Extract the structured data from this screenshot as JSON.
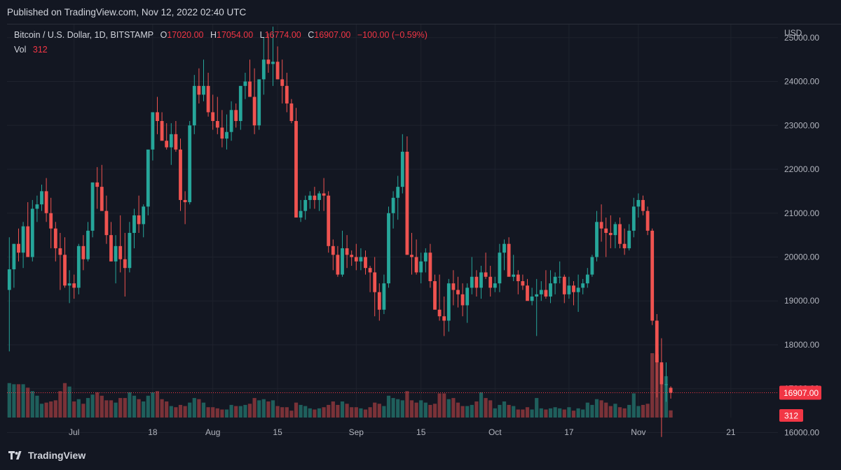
{
  "header": {
    "published": "Published on TradingView.com, Nov 12, 2022 02:40 UTC"
  },
  "legend": {
    "symbol": "Bitcoin / U.S. Dollar, 1D, BITSTAMP",
    "o_label": "O",
    "o_value": "17020.00",
    "h_label": "H",
    "h_value": "17054.00",
    "l_label": "L",
    "l_value": "16774.00",
    "c_label": "C",
    "c_value": "16907.00",
    "change": "−100.00 (−0.59%)",
    "vol_label": "Vol",
    "vol_value": "312"
  },
  "footer": {
    "brand": "TradingView"
  },
  "colors": {
    "background": "#131722",
    "grid": "#1e222d",
    "up": "#26a69a",
    "down": "#ef5350",
    "vol_up": "#1f5f5c",
    "vol_down": "#7a3238",
    "text": "#b2b5be",
    "last_price": "#f23645"
  },
  "chart_data": {
    "type": "candlestick",
    "currency": "USD",
    "ylim": [
      15800,
      25300
    ],
    "y_ticks": [
      "16000.00",
      "17000.00",
      "18000.00",
      "19000.00",
      "20000.00",
      "21000.00",
      "22000.00",
      "23000.00",
      "24000.00",
      "25000.00"
    ],
    "x_ticks": [
      {
        "label": "Jul",
        "index": 14
      },
      {
        "label": "18",
        "index": 31
      },
      {
        "label": "Aug",
        "index": 44
      },
      {
        "label": "15",
        "index": 58
      },
      {
        "label": "Sep",
        "index": 75
      },
      {
        "label": "15",
        "index": 89
      },
      {
        "label": "Oct",
        "index": 105
      },
      {
        "label": "17",
        "index": 121
      },
      {
        "label": "Nov",
        "index": 136
      },
      {
        "label": "21",
        "index": 156
      }
    ],
    "last_price": "16907.00",
    "last_volume": "312",
    "ohlcv": [
      [
        19250,
        20450,
        17850,
        19720,
        1500
      ],
      [
        19720,
        20300,
        19300,
        20300,
        1450
      ],
      [
        20300,
        20650,
        19900,
        20100,
        1450
      ],
      [
        20100,
        20800,
        19750,
        20700,
        1450
      ],
      [
        20700,
        21250,
        20000,
        20000,
        1300
      ],
      [
        20000,
        21300,
        19900,
        21100,
        1150
      ],
      [
        21100,
        21400,
        20800,
        21200,
        950
      ],
      [
        21200,
        21650,
        21050,
        21500,
        600
      ],
      [
        21500,
        21800,
        20800,
        21000,
        650
      ],
      [
        21000,
        21350,
        20200,
        20650,
        700
      ],
      [
        20650,
        20800,
        19900,
        20200,
        750
      ],
      [
        20200,
        20550,
        19250,
        20050,
        1150
      ],
      [
        20050,
        20450,
        19300,
        19350,
        1500
      ],
      [
        19350,
        19700,
        18950,
        19400,
        1350
      ],
      [
        19400,
        19600,
        19050,
        19300,
        700
      ],
      [
        19300,
        20300,
        19150,
        20250,
        800
      ],
      [
        20250,
        20500,
        19700,
        19950,
        600
      ],
      [
        19950,
        20800,
        19900,
        20600,
        850
      ],
      [
        20600,
        21700,
        20450,
        21700,
        1000
      ],
      [
        21700,
        22050,
        21100,
        21600,
        1100
      ],
      [
        21600,
        22100,
        21150,
        21050,
        950
      ],
      [
        21050,
        21400,
        20300,
        20500,
        750
      ],
      [
        20500,
        20800,
        19900,
        19900,
        750
      ],
      [
        19900,
        20500,
        19400,
        20250,
        650
      ],
      [
        20250,
        20950,
        19650,
        19950,
        850
      ],
      [
        19950,
        20550,
        19100,
        19750,
        850
      ],
      [
        19750,
        20800,
        19650,
        20550,
        1100
      ],
      [
        20550,
        21100,
        20200,
        20950,
        950
      ],
      [
        20950,
        21400,
        20550,
        20750,
        800
      ],
      [
        20750,
        21200,
        20450,
        21150,
        700
      ],
      [
        21150,
        22000,
        20950,
        22450,
        950
      ],
      [
        22450,
        23200,
        22200,
        23300,
        1100
      ],
      [
        23300,
        23650,
        22800,
        23100,
        1150
      ],
      [
        23100,
        23300,
        22850,
        22650,
        800
      ],
      [
        22650,
        23050,
        22450,
        22500,
        700
      ],
      [
        22500,
        23050,
        22100,
        22800,
        500
      ],
      [
        22800,
        23100,
        22400,
        22450,
        450
      ],
      [
        22450,
        22700,
        21050,
        21300,
        550
      ],
      [
        21300,
        21500,
        20750,
        21250,
        500
      ],
      [
        21250,
        23100,
        21200,
        23000,
        650
      ],
      [
        23000,
        24150,
        22800,
        23900,
        850
      ],
      [
        23900,
        24300,
        23500,
        23700,
        800
      ],
      [
        23700,
        24500,
        23550,
        23900,
        650
      ],
      [
        23900,
        24200,
        23200,
        23300,
        450
      ],
      [
        23300,
        23700,
        22900,
        23100,
        450
      ],
      [
        23100,
        23650,
        22800,
        22950,
        400
      ],
      [
        22950,
        23350,
        22500,
        22700,
        350
      ],
      [
        22700,
        23250,
        22450,
        22850,
        350
      ],
      [
        22850,
        23550,
        22650,
        23350,
        550
      ],
      [
        23350,
        23500,
        22950,
        23100,
        500
      ],
      [
        23100,
        23900,
        22900,
        23900,
        500
      ],
      [
        23900,
        24200,
        23600,
        24000,
        550
      ],
      [
        24000,
        24500,
        23700,
        23650,
        600
      ],
      [
        23650,
        24300,
        22800,
        23000,
        850
      ],
      [
        23000,
        24050,
        22900,
        24050,
        750
      ],
      [
        24050,
        25000,
        23700,
        24500,
        800
      ],
      [
        24500,
        25100,
        24200,
        24400,
        700
      ],
      [
        24400,
        25250,
        23900,
        24450,
        750
      ],
      [
        24450,
        24800,
        24100,
        24050,
        500
      ],
      [
        24050,
        24500,
        23500,
        23900,
        450
      ],
      [
        23900,
        24200,
        23300,
        23500,
        450
      ],
      [
        23500,
        23600,
        23050,
        23100,
        300
      ],
      [
        23100,
        23400,
        20900,
        20900,
        650
      ],
      [
        20900,
        21300,
        20800,
        21050,
        550
      ],
      [
        21050,
        21400,
        20850,
        21300,
        500
      ],
      [
        21300,
        21500,
        21100,
        21400,
        400
      ],
      [
        21400,
        21600,
        21100,
        21300,
        350
      ],
      [
        21300,
        21500,
        21050,
        21450,
        400
      ],
      [
        21450,
        21800,
        21050,
        21400,
        450
      ],
      [
        21400,
        21500,
        20100,
        20250,
        550
      ],
      [
        20250,
        20400,
        19700,
        20050,
        700
      ],
      [
        20050,
        20250,
        19550,
        19600,
        550
      ],
      [
        19600,
        20600,
        19550,
        20200,
        700
      ],
      [
        20200,
        20500,
        19750,
        20050,
        600
      ],
      [
        20050,
        20150,
        19800,
        20000,
        450
      ],
      [
        20000,
        20300,
        19700,
        19900,
        450
      ],
      [
        19900,
        20200,
        19700,
        20000,
        400
      ],
      [
        20000,
        20150,
        19600,
        19750,
        350
      ],
      [
        19750,
        19800,
        19200,
        19650,
        450
      ],
      [
        19650,
        20000,
        18650,
        19200,
        650
      ],
      [
        19200,
        19400,
        18550,
        18800,
        600
      ],
      [
        18800,
        19600,
        18700,
        19400,
        500
      ],
      [
        19400,
        21150,
        19300,
        21000,
        950
      ],
      [
        21000,
        21500,
        20650,
        21350,
        850
      ],
      [
        21350,
        21850,
        20850,
        21600,
        800
      ],
      [
        21600,
        22800,
        21450,
        22400,
        750
      ],
      [
        22400,
        22750,
        20050,
        20050,
        1150
      ],
      [
        20050,
        20550,
        19600,
        20000,
        750
      ],
      [
        20000,
        20400,
        19600,
        19650,
        650
      ],
      [
        19650,
        20100,
        19400,
        19900,
        750
      ],
      [
        19900,
        20200,
        19650,
        20100,
        650
      ],
      [
        20100,
        20300,
        19300,
        19450,
        550
      ],
      [
        19450,
        19600,
        19350,
        18800,
        600
      ],
      [
        18800,
        19600,
        18550,
        18650,
        1050
      ],
      [
        18650,
        19100,
        18200,
        18550,
        1050
      ],
      [
        18550,
        19500,
        18300,
        19400,
        800
      ],
      [
        19400,
        19700,
        18900,
        19250,
        850
      ],
      [
        19250,
        19550,
        18850,
        19150,
        650
      ],
      [
        19150,
        19400,
        18650,
        18900,
        500
      ],
      [
        18900,
        19400,
        18500,
        19300,
        500
      ],
      [
        19300,
        20000,
        19150,
        19550,
        550
      ],
      [
        19550,
        19700,
        19100,
        19300,
        700
      ],
      [
        19300,
        19800,
        19050,
        19650,
        1100
      ],
      [
        19650,
        20100,
        19500,
        19550,
        850
      ],
      [
        19550,
        19800,
        19100,
        19300,
        750
      ],
      [
        19300,
        19550,
        19200,
        19400,
        400
      ],
      [
        19400,
        20300,
        19200,
        20100,
        550
      ],
      [
        20100,
        20400,
        19700,
        20300,
        700
      ],
      [
        20300,
        20450,
        19650,
        19550,
        550
      ],
      [
        19550,
        20050,
        19450,
        19600,
        500
      ],
      [
        19600,
        19700,
        19150,
        19450,
        350
      ],
      [
        19450,
        19600,
        19250,
        19350,
        350
      ],
      [
        19350,
        19500,
        19050,
        19000,
        450
      ],
      [
        19000,
        19300,
        18900,
        19100,
        350
      ],
      [
        19100,
        19500,
        18200,
        19150,
        850
      ],
      [
        19150,
        19450,
        19000,
        19250,
        400
      ],
      [
        19250,
        19700,
        19050,
        19100,
        350
      ],
      [
        19100,
        19700,
        18950,
        19400,
        400
      ],
      [
        19400,
        19650,
        19150,
        19550,
        450
      ],
      [
        19550,
        19900,
        19400,
        19550,
        400
      ],
      [
        19550,
        19600,
        18950,
        19150,
        350
      ],
      [
        19150,
        19550,
        19050,
        19350,
        450
      ],
      [
        19350,
        19450,
        18900,
        19200,
        300
      ],
      [
        19200,
        19600,
        18750,
        19300,
        400
      ],
      [
        19300,
        19500,
        19150,
        19400,
        350
      ],
      [
        19400,
        19750,
        19300,
        19600,
        650
      ],
      [
        19600,
        20050,
        19550,
        20000,
        550
      ],
      [
        20000,
        21050,
        19900,
        20800,
        800
      ],
      [
        20800,
        21200,
        20350,
        20650,
        750
      ],
      [
        20650,
        20900,
        20000,
        20550,
        650
      ],
      [
        20550,
        20950,
        20200,
        20500,
        500
      ],
      [
        20500,
        20800,
        20200,
        20750,
        600
      ],
      [
        20750,
        20900,
        20200,
        20300,
        450
      ],
      [
        20300,
        20650,
        20050,
        20200,
        400
      ],
      [
        20200,
        20750,
        20150,
        20600,
        550
      ],
      [
        20600,
        21350,
        20450,
        21150,
        1050
      ],
      [
        21150,
        21450,
        20900,
        21300,
        500
      ],
      [
        21300,
        21400,
        20950,
        21050,
        550
      ],
      [
        21050,
        21150,
        20500,
        20600,
        600
      ],
      [
        20600,
        20650,
        18450,
        18550,
        2800
      ],
      [
        18550,
        18700,
        16800,
        17600,
        2750
      ],
      [
        17600,
        18150,
        15900,
        17100,
        2300
      ],
      [
        17100,
        17600,
        16700,
        17100,
        1800
      ],
      [
        17020,
        17054,
        16774,
        16907,
        312
      ]
    ]
  }
}
